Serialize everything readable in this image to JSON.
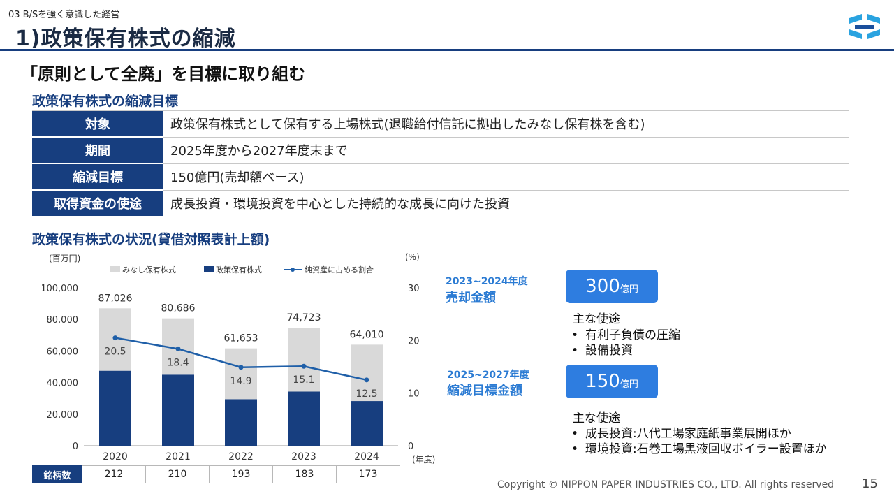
{
  "header": {
    "section_label": "03 B/Sを強く意識した経営",
    "title": "1)政策保有株式の縮減",
    "headline": "「原則として全廃」を目標に取り組む"
  },
  "target_section": {
    "title": "政策保有株式の縮減目標",
    "rows": [
      {
        "label": "対象",
        "value": "政策保有株式として保有する上場株式(退職給付信託に拠出したみなし保有株を含む)"
      },
      {
        "label": "期間",
        "value": "2025年度から2027年度末まで"
      },
      {
        "label": "縮減目標",
        "value": "150億円(売却額ベース)"
      },
      {
        "label": "取得資金の使途",
        "value": "成長投資・環境投資を中心とした持続的な成長に向けた投資"
      }
    ]
  },
  "status_section": {
    "title": "政策保有株式の状況(貸借対照表計上額)"
  },
  "chart_data": {
    "type": "bar",
    "stacked": true,
    "categories": [
      "2020",
      "2021",
      "2022",
      "2023",
      "2024"
    ],
    "series": [
      {
        "name": "政策保有株式",
        "values": [
          47500,
          45000,
          29500,
          34300,
          28300
        ],
        "color": "#173e7f"
      },
      {
        "name": "みなし保有株式",
        "values": [
          39526,
          35686,
          32153,
          40423,
          35710
        ],
        "color": "#d9d9d9"
      }
    ],
    "totals": [
      87026,
      80686,
      61653,
      74723,
      64010
    ],
    "total_labels": [
      "87,026",
      "80,686",
      "61,653",
      "74,723",
      "64,010"
    ],
    "line": {
      "name": "純資産に占める割合",
      "values": [
        20.5,
        18.4,
        14.9,
        15.1,
        12.5
      ],
      "value_labels": [
        "20.5",
        "18.4",
        "14.9",
        "15.1",
        "12.5"
      ],
      "color": "#1f5fa8"
    },
    "legend_order": [
      "みなし保有株式",
      "政策保有株式",
      "純資産に占める割合"
    ],
    "y_left": {
      "unit": "(百万円)",
      "range": [
        0,
        100000
      ],
      "ticks": [
        "0",
        "20,000",
        "40,000",
        "60,000",
        "80,000",
        "100,000"
      ]
    },
    "y_right": {
      "unit": "(%)",
      "range": [
        0,
        30
      ],
      "ticks": [
        "0",
        "10",
        "20",
        "30"
      ]
    },
    "x_unit": "(年度)",
    "legend_position": "top"
  },
  "counts": {
    "label": "銘柄数",
    "values": [
      "212",
      "210",
      "193",
      "183",
      "173"
    ]
  },
  "right_panel": {
    "block1": {
      "period": "2023~2024年度",
      "label": "売却金額",
      "amount": "300",
      "unit": "億円",
      "uses_title": "主な使途",
      "uses": [
        "有利子負債の圧縮",
        "設備投資"
      ]
    },
    "block2": {
      "period": "2025~2027年度",
      "label": "縮減目標金額",
      "amount": "150",
      "unit": "億円",
      "uses_title": "主な使途",
      "uses": [
        "成長投資:八代工場家庭紙事業展開ほか",
        "環境投資:石巻工場黒液回収ボイラー設置ほか"
      ]
    }
  },
  "footer": {
    "copyright": "Copyright © NIPPON PAPER INDUSTRIES CO., LTD. All rights reserved",
    "page_number": "15"
  },
  "colors": {
    "navy": "#173e7f",
    "accent_blue": "#2e7de0",
    "light_gray": "#d9d9d9"
  }
}
